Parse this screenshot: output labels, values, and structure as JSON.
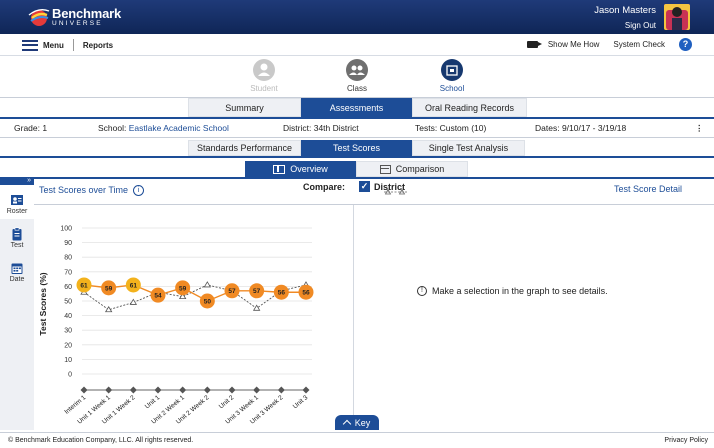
{
  "brand": {
    "line1": "Benchmark",
    "line2": "UNIVERSE"
  },
  "user": {
    "name": "Jason Masters",
    "sign_out": "Sign Out"
  },
  "nav": {
    "menu": "Menu",
    "reports": "Reports",
    "show_me_how": "Show Me How",
    "system_check": "System Check",
    "help": "?"
  },
  "levels": [
    {
      "label": "Student",
      "state": "disabled"
    },
    {
      "label": "Class",
      "state": "available"
    },
    {
      "label": "School",
      "state": "selected"
    }
  ],
  "main_tabs": [
    {
      "label": "Summary",
      "active": false
    },
    {
      "label": "Assessments",
      "active": true
    },
    {
      "label": "Oral Reading Records",
      "active": false
    }
  ],
  "info": {
    "grade_label": "Grade:",
    "grade": "1",
    "school_label": "School:",
    "school": "Eastlake Academic School",
    "district_label": "District:",
    "district": "34th District",
    "tests_label": "Tests:",
    "tests": "Custom (10)",
    "dates_label": "Dates:",
    "dates": "9/10/17 - 3/19/18",
    "more": "⋮"
  },
  "sub_tabs": [
    {
      "label": "Standards Performance",
      "active": false
    },
    {
      "label": "Test Scores",
      "active": true
    },
    {
      "label": "Single Test Analysis",
      "active": false
    }
  ],
  "view_tabs": [
    {
      "label": "Overview",
      "active": true
    },
    {
      "label": "Comparison",
      "active": false
    }
  ],
  "sidebar": {
    "collapse": "»",
    "items": [
      {
        "label": "Roster",
        "icon": "roster-icon"
      },
      {
        "label": "Test",
        "icon": "clipboard-icon"
      },
      {
        "label": "Date",
        "icon": "calendar-icon"
      }
    ]
  },
  "left_panel": {
    "title": "Test Scores over Time",
    "info_icon": "i"
  },
  "compare": {
    "label": "Compare:",
    "option": "District",
    "checked": true
  },
  "right_panel": {
    "title": "Test Score Detail",
    "hint": "Make a selection in the graph to see details."
  },
  "key_label": "Key",
  "footer": {
    "copyright": "© Benchmark Education Company, LLC. All rights reserved.",
    "privacy": "Privacy Policy"
  },
  "colors": {
    "brand_dark": "#0f2657",
    "accent_blue": "#1d4d97",
    "school_orange": "#f08a24",
    "school_yellow": "#f3b21c"
  },
  "chart_data": {
    "type": "line",
    "ylabel": "Test Scores (%)",
    "ylim": [
      0,
      100
    ],
    "yticks": [
      0,
      10,
      20,
      30,
      40,
      50,
      60,
      70,
      80,
      90,
      100
    ],
    "grid": true,
    "categories": [
      "Interim 1",
      "Unit 1 Week 1",
      "Unit 1 Week 2",
      "Unit 1",
      "Unit 2 Week 1",
      "Unit 2 Week 2",
      "Unit 2",
      "Unit 3 Week 1",
      "Unit 3 Week 2",
      "Unit 3"
    ],
    "series": [
      {
        "style": "school",
        "values": [
          61,
          59,
          61,
          54,
          59,
          50,
          57,
          57,
          56,
          56
        ],
        "labels": [
          "61",
          "59",
          "61",
          "54",
          "59",
          "50",
          "57",
          "57",
          "56",
          "56"
        ]
      },
      {
        "style": "district",
        "values": [
          56,
          44,
          49,
          56,
          53,
          61,
          57,
          45,
          57,
          61
        ]
      },
      {
        "style": "baseline",
        "values": [
          -10,
          -10,
          -10,
          -10,
          -10,
          -10,
          -10,
          -10,
          -10,
          -10
        ]
      }
    ]
  }
}
